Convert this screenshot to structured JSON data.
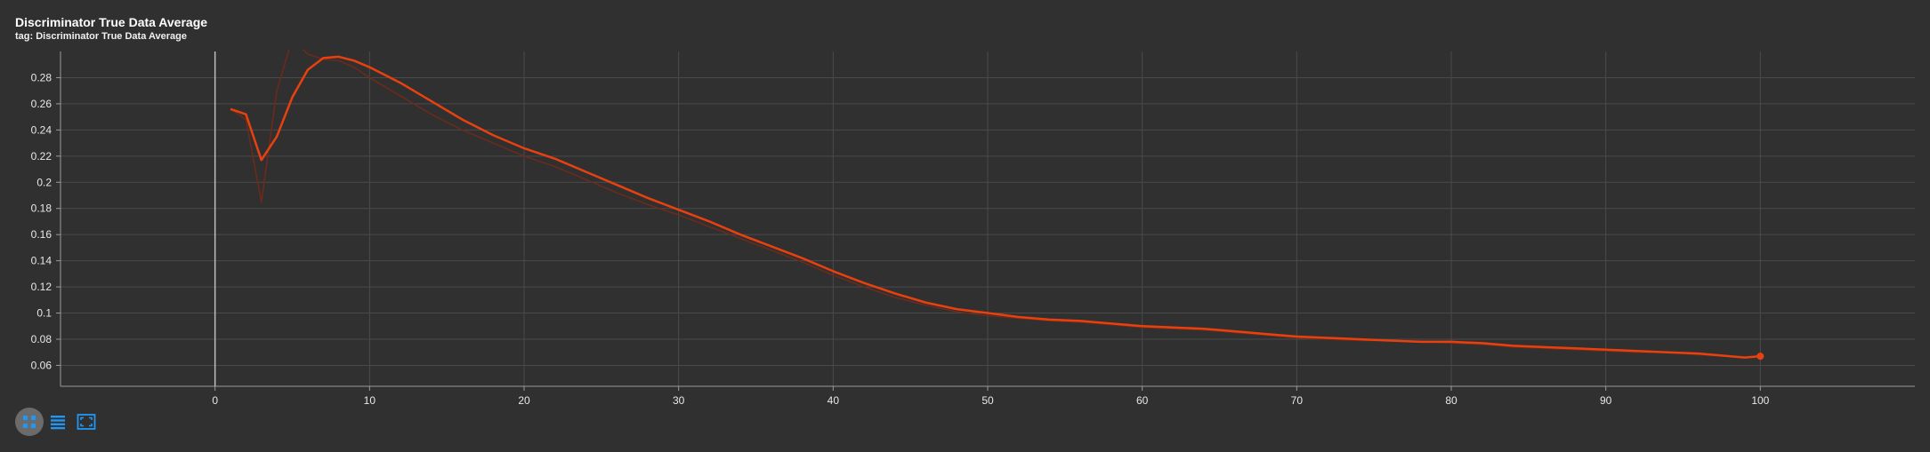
{
  "card": {
    "title": "Discriminator True Data Average",
    "subtitle": "tag: Discriminator True Data Average"
  },
  "toolbar": {
    "buttons": [
      {
        "name": "fit-domain-icon",
        "active": true
      },
      {
        "name": "data-table-icon",
        "active": false
      },
      {
        "name": "expand-icon",
        "active": false
      }
    ]
  },
  "colors": {
    "background": "#303030",
    "grid": "#4a4a4a",
    "line": "#e8410f",
    "raw_line": "#6e2a1a",
    "axis_text": "#e8e8e8",
    "accent_icon": "#2196f3"
  },
  "chart_data": {
    "type": "line",
    "title": "Discriminator True Data Average",
    "xlabel": "",
    "ylabel": "",
    "xlim": [
      -10,
      110
    ],
    "ylim": [
      0.044,
      0.3
    ],
    "xticks": [
      0,
      10,
      20,
      30,
      40,
      50,
      60,
      70,
      80,
      90,
      100
    ],
    "yticks": [
      0.06,
      0.08,
      0.1,
      0.12,
      0.14,
      0.16,
      0.18,
      0.2,
      0.22,
      0.24,
      0.26,
      0.28
    ],
    "ytick_labels": [
      "0.06",
      "0.08",
      "0.1",
      "0.12",
      "0.14",
      "0.16",
      "0.18",
      "0.2",
      "0.22",
      "0.24",
      "0.26",
      "0.28"
    ],
    "grid": true,
    "legend": "none",
    "series": [
      {
        "kind": "smoothed",
        "x": [
          1,
          2,
          3,
          4,
          5,
          6,
          7,
          8,
          9,
          10,
          12,
          14,
          16,
          18,
          20,
          22,
          24,
          26,
          28,
          30,
          32,
          34,
          36,
          38,
          40,
          42,
          44,
          46,
          48,
          50,
          52,
          54,
          56,
          58,
          60,
          62,
          64,
          66,
          68,
          70,
          72,
          74,
          76,
          78,
          80,
          82,
          84,
          86,
          88,
          90,
          92,
          94,
          96,
          98,
          99,
          100
        ],
        "y": [
          0.256,
          0.252,
          0.217,
          0.235,
          0.265,
          0.286,
          0.295,
          0.296,
          0.293,
          0.288,
          0.276,
          0.262,
          0.248,
          0.236,
          0.226,
          0.218,
          0.208,
          0.198,
          0.188,
          0.179,
          0.17,
          0.16,
          0.151,
          0.142,
          0.132,
          0.123,
          0.115,
          0.108,
          0.103,
          0.1,
          0.097,
          0.095,
          0.094,
          0.092,
          0.09,
          0.089,
          0.088,
          0.086,
          0.084,
          0.082,
          0.081,
          0.08,
          0.079,
          0.078,
          0.078,
          0.077,
          0.075,
          0.074,
          0.073,
          0.072,
          0.071,
          0.07,
          0.069,
          0.067,
          0.066,
          0.067
        ]
      },
      {
        "kind": "raw",
        "x": [
          1,
          2,
          3,
          4,
          5,
          6,
          7,
          8,
          9,
          10,
          12,
          14,
          16,
          18,
          20,
          22,
          24,
          26,
          28,
          30,
          32,
          34,
          36,
          38,
          40,
          42,
          44,
          46,
          48,
          50,
          52,
          54,
          56,
          58,
          60,
          62,
          64,
          66,
          68,
          70,
          72,
          74,
          76,
          78,
          80,
          82,
          84,
          86,
          88,
          90,
          92,
          94,
          96,
          98,
          99,
          100
        ],
        "y": [
          0.256,
          0.248,
          0.185,
          0.27,
          0.31,
          0.298,
          0.294,
          0.293,
          0.288,
          0.28,
          0.266,
          0.252,
          0.24,
          0.23,
          0.22,
          0.212,
          0.202,
          0.192,
          0.183,
          0.175,
          0.166,
          0.157,
          0.148,
          0.139,
          0.129,
          0.12,
          0.112,
          0.106,
          0.101,
          0.098,
          0.096,
          0.094,
          0.093,
          0.091,
          0.089,
          0.088,
          0.087,
          0.085,
          0.083,
          0.081,
          0.08,
          0.079,
          0.079,
          0.078,
          0.077,
          0.076,
          0.074,
          0.073,
          0.072,
          0.071,
          0.07,
          0.07,
          0.068,
          0.067,
          0.066,
          0.067
        ]
      }
    ]
  }
}
